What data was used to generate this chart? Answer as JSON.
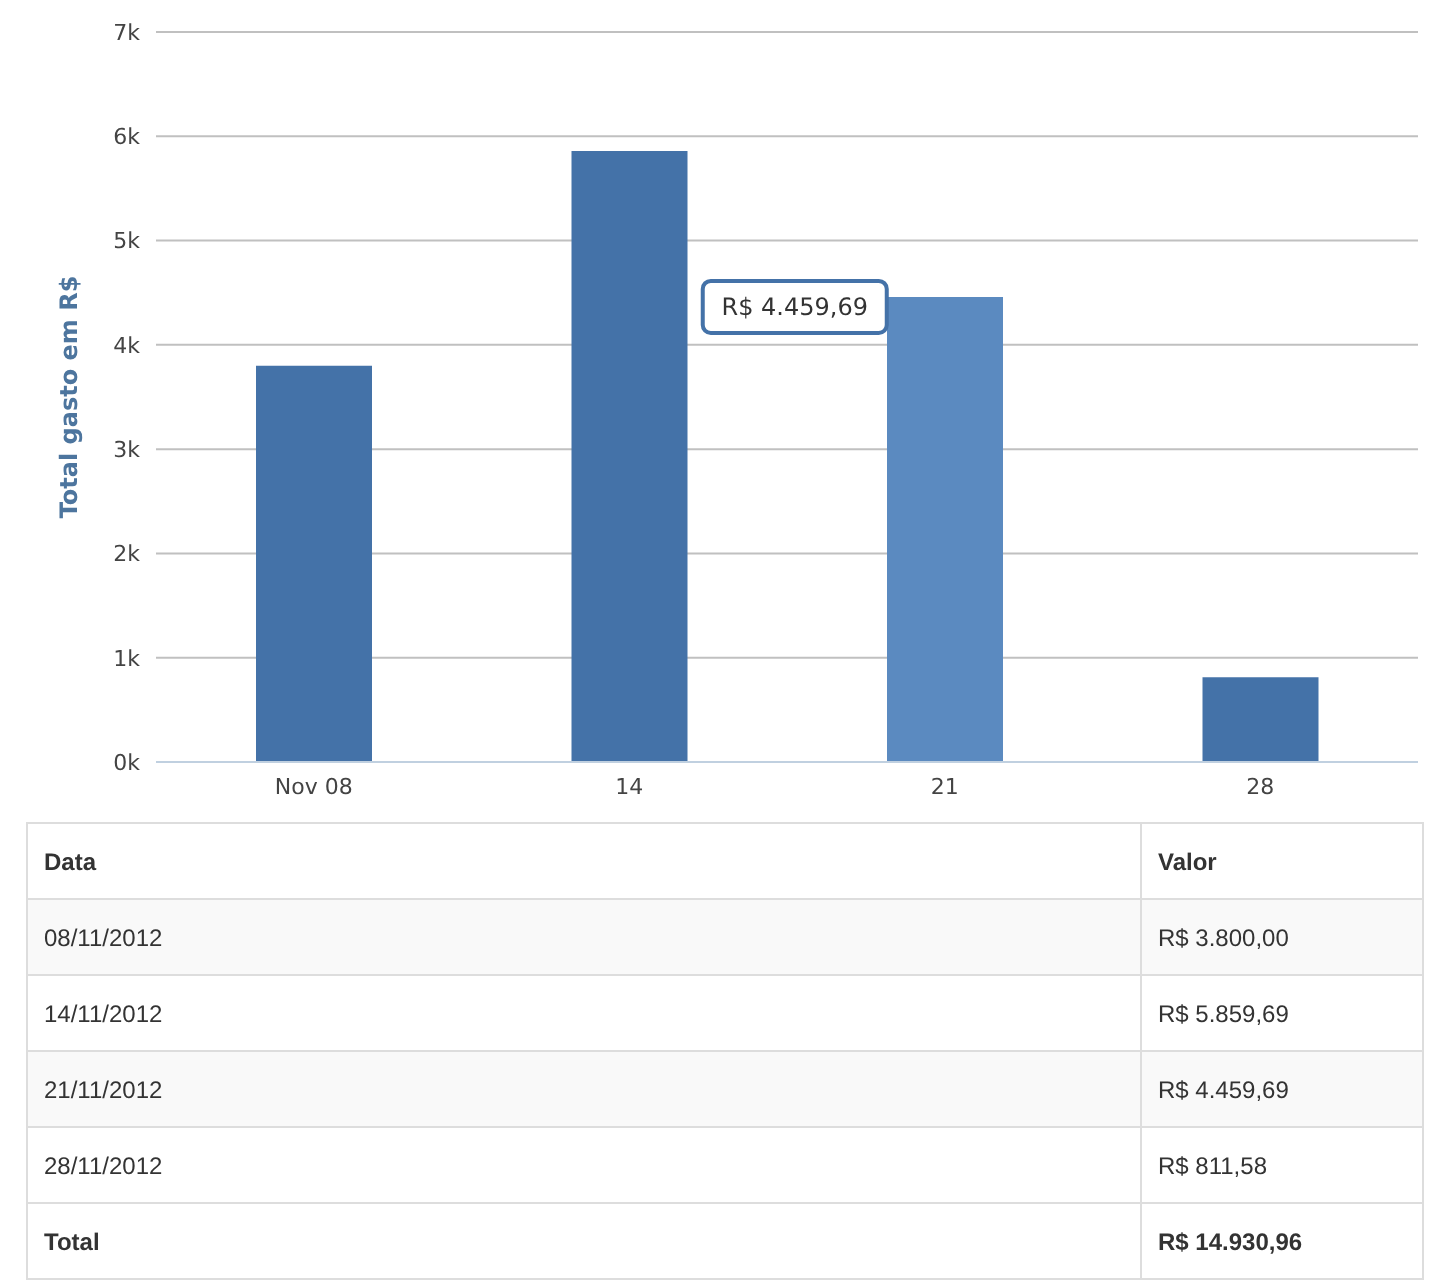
{
  "chart_data": {
    "type": "bar",
    "categories": [
      "Nov 08",
      "14",
      "21",
      "28"
    ],
    "values": [
      3800,
      5859.69,
      4459.69,
      811.58
    ],
    "colors": [
      "#4472a8",
      "#4472a8",
      "#5b8ac0",
      "#4472a8"
    ],
    "ylabel": "Total gasto em R$",
    "ylim": [
      0,
      7000
    ],
    "yticks": [
      {
        "value": 0,
        "label": "0k"
      },
      {
        "value": 1000,
        "label": "1k"
      },
      {
        "value": 2000,
        "label": "2k"
      },
      {
        "value": 3000,
        "label": "3k"
      },
      {
        "value": 4000,
        "label": "4k"
      },
      {
        "value": 5000,
        "label": "5k"
      },
      {
        "value": 6000,
        "label": "6k"
      },
      {
        "value": 7000,
        "label": "7k"
      }
    ],
    "grid": "y",
    "annotations": [
      "R$ 4.459,69",
      "Data",
      "Valor",
      "08/11/2012",
      "14/11/2012",
      "21/11/2012",
      "28/11/2012",
      "R$ 3.800,00",
      "R$ 5.859,69",
      "R$ 4.459,69",
      "R$ 811,58",
      "Total",
      "R$ 14.930,96"
    ]
  }
}
